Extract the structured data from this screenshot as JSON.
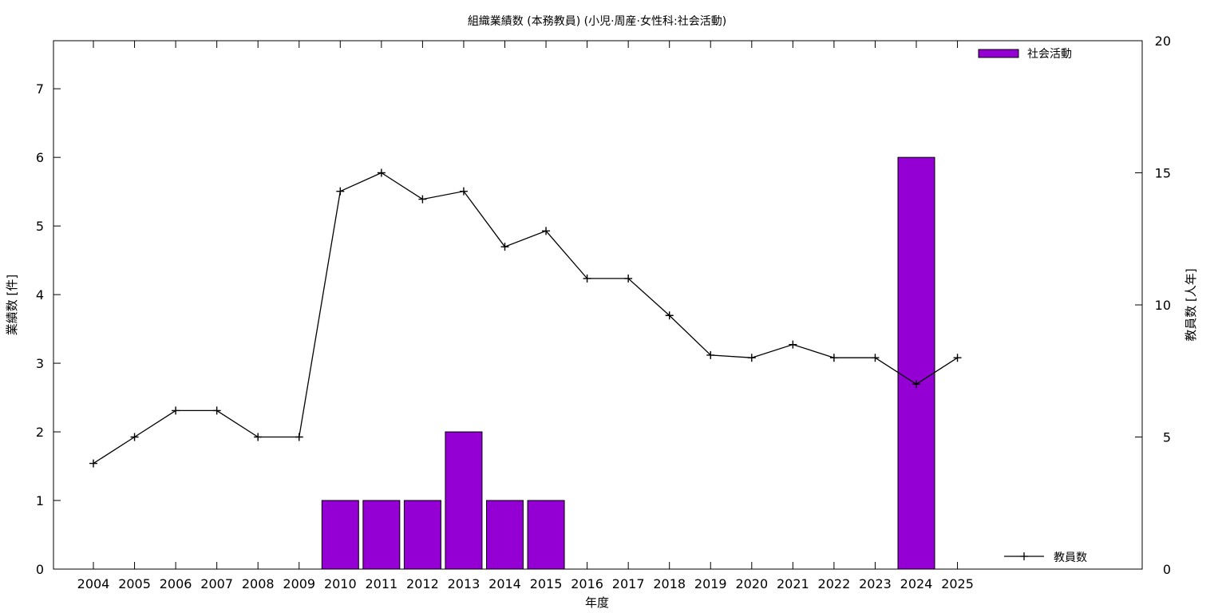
{
  "chart_data": {
    "type": "bar",
    "title": "組織業績数 (本務教員) (小児·周産·女性科:社会活動)",
    "xlabel": "年度",
    "ylabel": "業績数 [件]",
    "y2label": "教員数 [人年]",
    "categories": [
      "2004",
      "2005",
      "2006",
      "2007",
      "2008",
      "2009",
      "2010",
      "2011",
      "2012",
      "2013",
      "2014",
      "2015",
      "2016",
      "2017",
      "2018",
      "2019",
      "2020",
      "2021",
      "2022",
      "2023",
      "2024",
      "2025"
    ],
    "ylim": [
      0,
      7.7
    ],
    "yticks": [
      0,
      1,
      2,
      3,
      4,
      5,
      6,
      7
    ],
    "y2lim": [
      0,
      20
    ],
    "y2ticks": [
      0,
      5,
      10,
      15,
      20
    ],
    "grid": false,
    "series": [
      {
        "name": "社会活動",
        "type": "bar",
        "axis": "left",
        "color": "#9400d3",
        "values": [
          0,
          0,
          0,
          0,
          0,
          0,
          1,
          1,
          1,
          2,
          1,
          1,
          0,
          0,
          0,
          0,
          0,
          0,
          0,
          0,
          6,
          0
        ]
      },
      {
        "name": "教員数",
        "type": "line",
        "axis": "right",
        "color": "#000000",
        "marker": "plus",
        "values": [
          4,
          5,
          6,
          6,
          5,
          5,
          14.3,
          15,
          14,
          14.3,
          12.2,
          12.8,
          11,
          11,
          9.6,
          8.1,
          8,
          8.5,
          8,
          8,
          7,
          8
        ]
      }
    ],
    "legend": [
      {
        "label": "社会活動",
        "placement": "top-right"
      },
      {
        "label": "教員数",
        "placement": "bottom-right"
      }
    ]
  }
}
